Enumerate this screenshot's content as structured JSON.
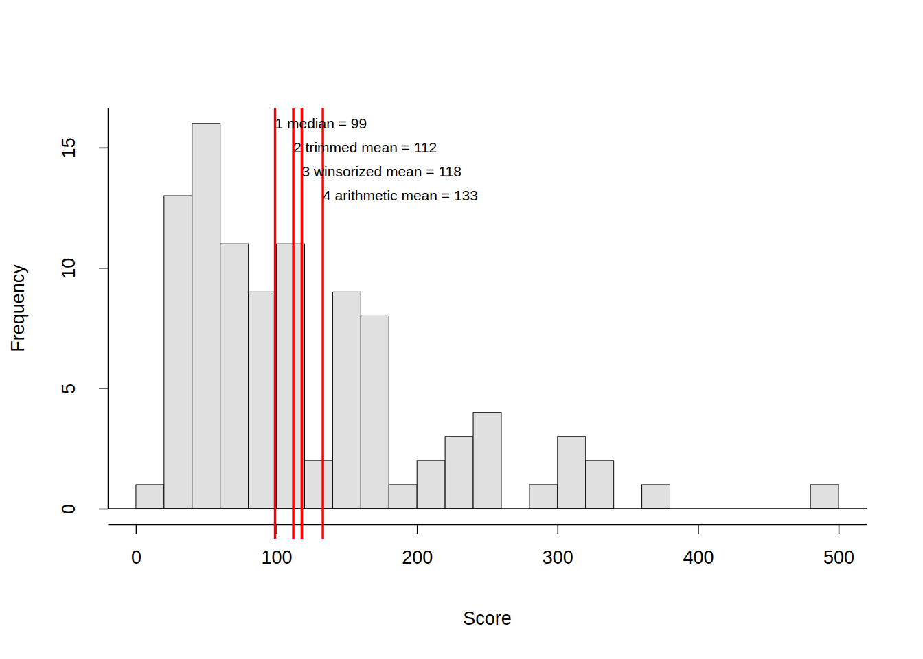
{
  "chart_data": {
    "type": "histogram",
    "bins": [
      0,
      20,
      40,
      60,
      80,
      100,
      120,
      140,
      160,
      180,
      200,
      220,
      240,
      260,
      280,
      300,
      320,
      340,
      360,
      380,
      400,
      420,
      440,
      460,
      480,
      500
    ],
    "values": [
      1,
      13,
      16,
      11,
      9,
      11,
      2,
      9,
      8,
      1,
      2,
      3,
      4,
      0,
      1,
      3,
      2,
      0,
      1,
      0,
      0,
      0,
      0,
      0,
      1
    ],
    "color": "#e0e0e0",
    "xlabel": "Score",
    "ylabel": "Frequency",
    "xlim": [
      -20,
      520
    ],
    "ylim": [
      0,
      16.65
    ],
    "xticks": [
      0,
      100,
      200,
      300,
      400,
      500
    ],
    "yticks": [
      0,
      5,
      10,
      15
    ],
    "lines": {
      "color": "#ff0000",
      "values": [
        99,
        112,
        118,
        133
      ],
      "labels": [
        "1 median = 99",
        "2 trimmed mean = 112",
        "3 winsorized mean = 118",
        "4 arithmetic mean = 133"
      ]
    }
  }
}
